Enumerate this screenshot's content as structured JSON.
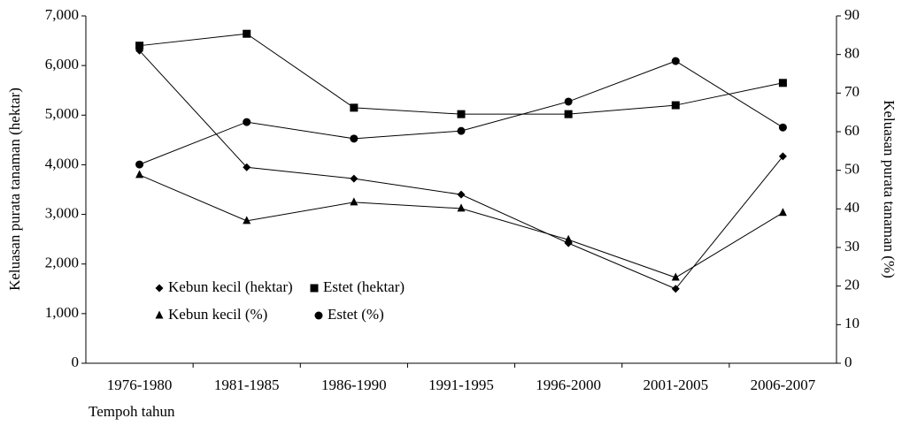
{
  "chart_data": {
    "type": "line",
    "x_label": "Tempoh tahun",
    "y_label": "Keluasan purata tanaman (hektar)",
    "y2_label": "Keluasan purata tanaman (%)",
    "categories": [
      "1976-1980",
      "1981-1985",
      "1986-1990",
      "1991-1995",
      "1996-2000",
      "2001-2005",
      "2006-2007"
    ],
    "series": [
      {
        "name": "Kebun kecil (hektar)",
        "color": "#000000",
        "marker": "diamond",
        "values": [
          6300,
          3950,
          3720,
          3400,
          2420,
          1500,
          4170
        ]
      },
      {
        "name": "Estet (hektar)",
        "color": "#000000",
        "marker": "square",
        "values": [
          6400,
          6640,
          5150,
          5020,
          5020,
          5200,
          5650
        ]
      },
      {
        "name": "Kebun kecil (%)",
        "color": "#000000",
        "marker": "triangle",
        "axis": "y2",
        "values": [
          48.8,
          36.9,
          41.7,
          40.1,
          32,
          22.2,
          39
        ]
      },
      {
        "name": "Estet (%)",
        "color": "#000000",
        "marker": "circle",
        "axis": "y2",
        "values": [
          51.5,
          62.5,
          58.2,
          60.2,
          67.8,
          78.3,
          61.1
        ]
      }
    ],
    "ylim": [
      0,
      7000
    ],
    "yticks": [
      0,
      {
        "value": 1000,
        "label": "1,000"
      },
      {
        "value": 2000,
        "label": "2,000"
      },
      {
        "value": 3000,
        "label": "3,000"
      },
      {
        "value": 4000,
        "label": "4,000"
      },
      {
        "value": 5000,
        "label": "5,000"
      },
      {
        "value": 6000,
        "label": "6,000"
      },
      {
        "value": 7000,
        "label": "7,000"
      }
    ],
    "y2lim": [
      0,
      90
    ],
    "y2ticks": [
      0,
      10,
      20,
      30,
      40,
      50,
      60,
      70,
      80,
      90
    ],
    "grid": false,
    "legend": "inside-lower-left"
  }
}
